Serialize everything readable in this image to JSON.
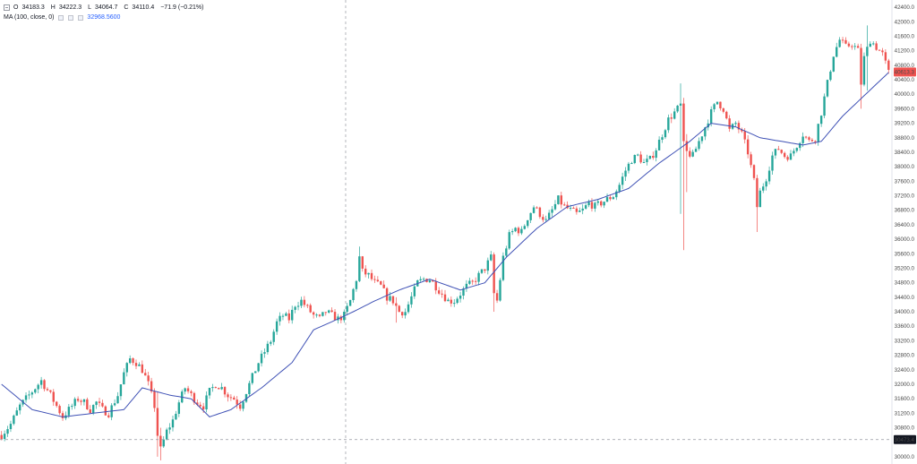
{
  "legend": {
    "toggle_icon": "minus-square-icon",
    "open_key": "O",
    "open": "34183.3",
    "high_key": "H",
    "high": "34222.3",
    "low_key": "L",
    "low": "34064.7",
    "close_key": "C",
    "close": "34110.4",
    "change": "−71.9 (−0.21%)",
    "ma_name": "MA (100, close, 0)",
    "ma_value": "32968.5600"
  },
  "colors": {
    "up": "#26a69a",
    "down": "#ef5350",
    "ma": "#3f51b5",
    "last_price_bg": "#ef5350",
    "crosshair_bg": "#131722"
  },
  "chart_data": {
    "type": "candlestick",
    "y_axis": {
      "position": "right",
      "ylim": [
        29800,
        42600
      ],
      "ticks": [
        30000,
        30400,
        30800,
        31200,
        31600,
        32000,
        32400,
        32800,
        33200,
        33600,
        34000,
        34400,
        34800,
        35200,
        35600,
        36000,
        36400,
        36800,
        37200,
        37600,
        38000,
        38400,
        38800,
        39200,
        39600,
        40000,
        40400,
        40800,
        41200,
        41600,
        42000,
        42400
      ],
      "tick_labels": [
        "30000.0",
        "30400.0",
        "30800.0",
        "31200.0",
        "31600.0",
        "32000.0",
        "32400.0",
        "32800.0",
        "33200.0",
        "33600.0",
        "34000.0",
        "34400.0",
        "34800.0",
        "35200.0",
        "35600.0",
        "36000.0",
        "36400.0",
        "36800.0",
        "37200.0",
        "37600.0",
        "38000.0",
        "38400.0",
        "38800.0",
        "39200.0",
        "39600.0",
        "40000.0",
        "40400.0",
        "40800.0",
        "41200.0",
        "41600.0",
        "42000.0",
        "42400.0"
      ]
    },
    "last_price": 40613.3,
    "last_price_label": "40613.3",
    "crosshair_price": 30473.4,
    "crosshair_label": "30473.4",
    "price_path": [
      [
        0,
        30600
      ],
      [
        3,
        30900
      ],
      [
        6,
        31400
      ],
      [
        9,
        31700
      ],
      [
        11,
        31900
      ],
      [
        13,
        32100
      ],
      [
        16,
        31700
      ],
      [
        18,
        31400
      ],
      [
        20,
        31100
      ],
      [
        22,
        31300
      ],
      [
        25,
        31600
      ],
      [
        27,
        31500
      ],
      [
        29,
        31300
      ],
      [
        31,
        31500
      ],
      [
        33,
        31300
      ],
      [
        35,
        31200
      ],
      [
        38,
        31700
      ],
      [
        40,
        32300
      ],
      [
        42,
        32700
      ],
      [
        44,
        32600
      ],
      [
        46,
        32400
      ],
      [
        48,
        32000
      ],
      [
        50,
        31400
      ],
      [
        51,
        30600
      ],
      [
        52,
        30200
      ],
      [
        54,
        30700
      ],
      [
        56,
        31000
      ],
      [
        58,
        31500
      ],
      [
        60,
        31900
      ],
      [
        62,
        31700
      ],
      [
        64,
        31500
      ],
      [
        66,
        31400
      ],
      [
        68,
        31800
      ],
      [
        70,
        32000
      ],
      [
        72,
        31900
      ],
      [
        74,
        31700
      ],
      [
        76,
        31600
      ],
      [
        78,
        31400
      ],
      [
        80,
        31800
      ],
      [
        82,
        32200
      ],
      [
        84,
        32600
      ],
      [
        86,
        32900
      ],
      [
        88,
        33200
      ],
      [
        90,
        33700
      ],
      [
        92,
        33900
      ],
      [
        94,
        33800
      ],
      [
        96,
        34200
      ],
      [
        98,
        34300
      ],
      [
        100,
        34100
      ],
      [
        102,
        33900
      ],
      [
        104,
        33800
      ],
      [
        106,
        34000
      ],
      [
        108,
        33900
      ],
      [
        110,
        33800
      ],
      [
        112,
        33900
      ],
      [
        114,
        34300
      ],
      [
        116,
        34900
      ],
      [
        117,
        35500
      ],
      [
        118,
        35100
      ],
      [
        120,
        35000
      ],
      [
        122,
        34800
      ],
      [
        124,
        34700
      ],
      [
        126,
        34400
      ],
      [
        128,
        34300
      ],
      [
        130,
        34000
      ],
      [
        132,
        34000
      ],
      [
        134,
        34400
      ],
      [
        136,
        34800
      ],
      [
        138,
        34900
      ],
      [
        140,
        34900
      ],
      [
        142,
        34700
      ],
      [
        144,
        34500
      ],
      [
        146,
        34300
      ],
      [
        148,
        34300
      ],
      [
        150,
        34500
      ],
      [
        152,
        34700
      ],
      [
        154,
        34800
      ],
      [
        156,
        35000
      ],
      [
        158,
        35200
      ],
      [
        160,
        35500
      ],
      [
        161,
        34500
      ],
      [
        162,
        34300
      ],
      [
        163,
        34900
      ],
      [
        164,
        35500
      ],
      [
        166,
        36100
      ],
      [
        168,
        36300
      ],
      [
        170,
        36200
      ],
      [
        172,
        36600
      ],
      [
        174,
        36900
      ],
      [
        176,
        36700
      ],
      [
        178,
        36500
      ],
      [
        180,
        36800
      ],
      [
        182,
        37100
      ],
      [
        184,
        36900
      ],
      [
        186,
        36800
      ],
      [
        188,
        36700
      ],
      [
        190,
        36800
      ],
      [
        192,
        37000
      ],
      [
        194,
        36900
      ],
      [
        196,
        37000
      ],
      [
        198,
        37100
      ],
      [
        200,
        37200
      ],
      [
        202,
        37500
      ],
      [
        204,
        37900
      ],
      [
        206,
        38200
      ],
      [
        208,
        38300
      ],
      [
        210,
        38100
      ],
      [
        212,
        38200
      ],
      [
        214,
        38500
      ],
      [
        216,
        38900
      ],
      [
        218,
        39300
      ],
      [
        220,
        39500
      ],
      [
        222,
        39700
      ],
      [
        223,
        38600
      ],
      [
        224,
        38400
      ],
      [
        226,
        38300
      ],
      [
        228,
        38700
      ],
      [
        230,
        39100
      ],
      [
        232,
        39500
      ],
      [
        234,
        39800
      ],
      [
        236,
        39600
      ],
      [
        238,
        39000
      ],
      [
        240,
        39200
      ],
      [
        242,
        38900
      ],
      [
        244,
        38400
      ],
      [
        246,
        37600
      ],
      [
        247,
        36900
      ],
      [
        248,
        37300
      ],
      [
        250,
        37700
      ],
      [
        252,
        38300
      ],
      [
        254,
        38500
      ],
      [
        256,
        38300
      ],
      [
        258,
        38300
      ],
      [
        260,
        38600
      ],
      [
        262,
        38900
      ],
      [
        264,
        38700
      ],
      [
        266,
        38800
      ],
      [
        268,
        39500
      ],
      [
        270,
        40300
      ],
      [
        272,
        41100
      ],
      [
        274,
        41500
      ],
      [
        276,
        41300
      ],
      [
        278,
        41400
      ],
      [
        280,
        41200
      ],
      [
        281,
        40300
      ],
      [
        282,
        41000
      ],
      [
        284,
        41500
      ],
      [
        286,
        41300
      ],
      [
        288,
        41100
      ],
      [
        290,
        40600
      ]
    ],
    "ma_path": [
      [
        0,
        32000
      ],
      [
        10,
        31300
      ],
      [
        20,
        31100
      ],
      [
        30,
        31200
      ],
      [
        40,
        31300
      ],
      [
        46,
        31900
      ],
      [
        55,
        31700
      ],
      [
        62,
        31600
      ],
      [
        68,
        31100
      ],
      [
        75,
        31300
      ],
      [
        85,
        31900
      ],
      [
        95,
        32600
      ],
      [
        102,
        33500
      ],
      [
        110,
        33800
      ],
      [
        115,
        34000
      ],
      [
        122,
        34300
      ],
      [
        130,
        34600
      ],
      [
        140,
        34900
      ],
      [
        150,
        34600
      ],
      [
        158,
        34800
      ],
      [
        165,
        35500
      ],
      [
        175,
        36300
      ],
      [
        185,
        36900
      ],
      [
        195,
        37100
      ],
      [
        205,
        37400
      ],
      [
        215,
        38100
      ],
      [
        225,
        38700
      ],
      [
        232,
        39200
      ],
      [
        240,
        39100
      ],
      [
        248,
        38800
      ],
      [
        255,
        38700
      ],
      [
        262,
        38600
      ],
      [
        268,
        38700
      ],
      [
        275,
        39400
      ],
      [
        285,
        40200
      ],
      [
        290,
        40600
      ]
    ],
    "wicks": [
      {
        "i": 51,
        "low": 30000,
        "high": 31800
      },
      {
        "i": 52,
        "low": 29900,
        "high": 30800
      },
      {
        "i": 117,
        "low": 35000,
        "high": 35800
      },
      {
        "i": 129,
        "low": 33700,
        "high": 34400
      },
      {
        "i": 161,
        "low": 34000,
        "high": 35200
      },
      {
        "i": 222,
        "low": 36700,
        "high": 40300
      },
      {
        "i": 223,
        "low": 35700,
        "high": 39900
      },
      {
        "i": 224,
        "low": 37300,
        "high": 38900
      },
      {
        "i": 247,
        "low": 36200,
        "high": 37600
      },
      {
        "i": 281,
        "low": 39600,
        "high": 41200
      },
      {
        "i": 283,
        "low": 40100,
        "high": 41900
      }
    ]
  }
}
